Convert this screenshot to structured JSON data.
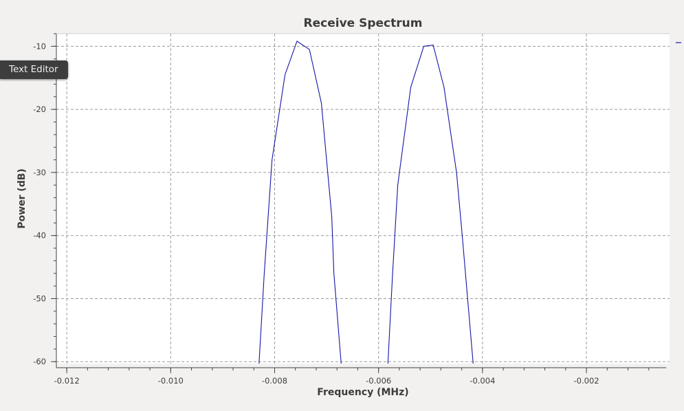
{
  "tooltip": {
    "text": "Text Editor"
  },
  "chart_data": {
    "type": "line",
    "title": "Receive Spectrum",
    "xlabel": "Frequency (MHz)",
    "ylabel": "Power (dB)",
    "xlim": [
      -0.0122,
      -0.0004
    ],
    "ylim": [
      -60.3,
      -8.0
    ],
    "xticks": [
      -0.012,
      -0.01,
      -0.008,
      -0.006,
      -0.004,
      -0.002
    ],
    "xtick_labels": [
      "-0.012",
      "-0.010",
      "-0.008",
      "-0.006",
      "-0.004",
      "-0.002"
    ],
    "yticks": [
      -10,
      -20,
      -30,
      -40,
      -50,
      -60
    ],
    "ytick_labels": [
      "-10",
      "-20",
      "-30",
      "-40",
      "-50",
      "-60"
    ],
    "grid": true,
    "line_color": "#1414a8",
    "series": [
      {
        "x": [
          -0.0083,
          -0.0082,
          -0.00805,
          -0.0078,
          -0.00757,
          -0.00733,
          -0.0071,
          -0.0069,
          -0.00686,
          -0.00672
        ],
        "y": [
          -60.3,
          -46,
          -28,
          -14.5,
          -9.2,
          -10.5,
          -19,
          -37,
          -46,
          -60.3
        ]
      },
      {
        "x": [
          -0.00582,
          -0.00573,
          -0.00563,
          -0.00538,
          -0.00513,
          -0.00495,
          -0.00474,
          -0.0045,
          -0.00439,
          -0.00418
        ],
        "y": [
          -60.3,
          -46,
          -32,
          -16.5,
          -10,
          -9.8,
          -16.5,
          -30,
          -40,
          -60.3
        ]
      }
    ]
  }
}
